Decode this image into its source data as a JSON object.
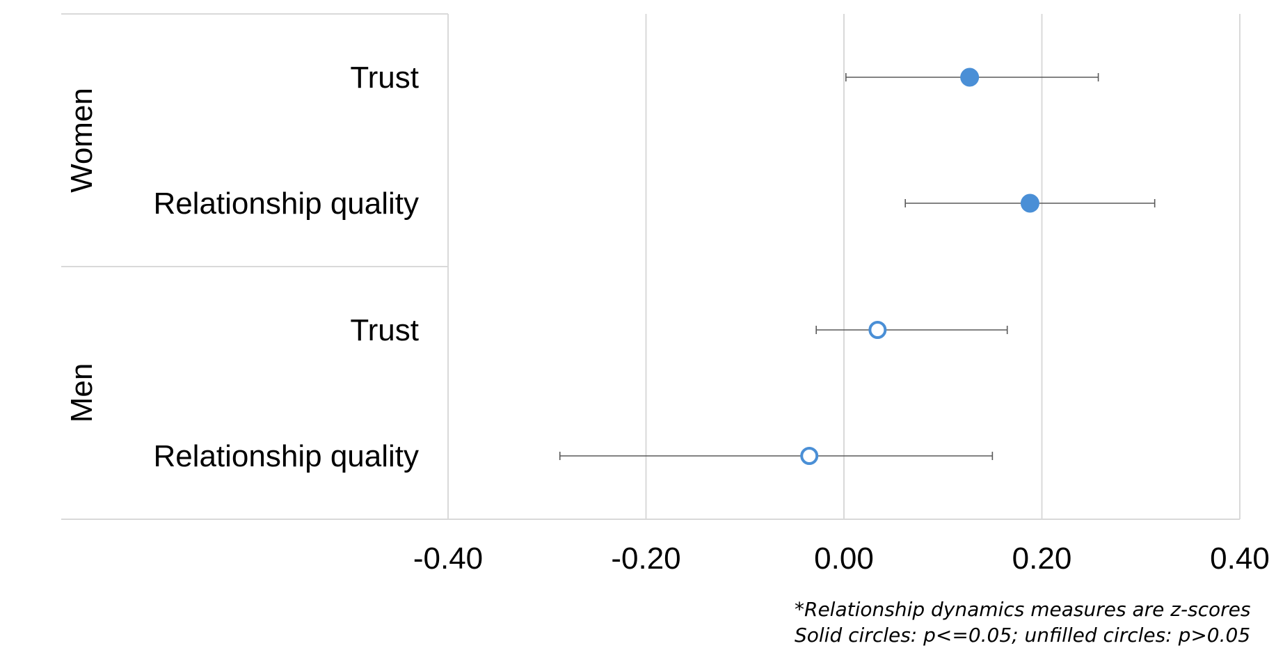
{
  "chart_data": {
    "type": "scatter",
    "orientation": "horizontal",
    "groups": [
      {
        "name": "Women",
        "items": [
          "Trust",
          "Relationship quality"
        ]
      },
      {
        "name": "Men",
        "items": [
          "Trust",
          "Relationship quality"
        ]
      }
    ],
    "points": [
      {
        "group": "Women",
        "label": "Trust",
        "estimate": 0.127,
        "ci_low": 0.002,
        "ci_high": 0.257,
        "filled": true
      },
      {
        "group": "Women",
        "label": "Relationship quality",
        "estimate": 0.188,
        "ci_low": 0.062,
        "ci_high": 0.314,
        "filled": true
      },
      {
        "group": "Men",
        "label": "Trust",
        "estimate": 0.034,
        "ci_low": -0.028,
        "ci_high": 0.165,
        "filled": false
      },
      {
        "group": "Men",
        "label": "Relationship quality",
        "estimate": -0.035,
        "ci_low": -0.287,
        "ci_high": 0.15,
        "filled": false
      }
    ],
    "xlim": [
      -0.4,
      0.4
    ],
    "xticks": [
      "-0.40",
      "-0.20",
      "0.00",
      "0.20",
      "0.40"
    ],
    "grid": "vertical",
    "marker_color": "#4a8fd6",
    "notes": [
      "*Relationship dynamics measures are z-scores",
      "Solid circles: p<=0.05; unfilled circles: p>0.05"
    ]
  }
}
